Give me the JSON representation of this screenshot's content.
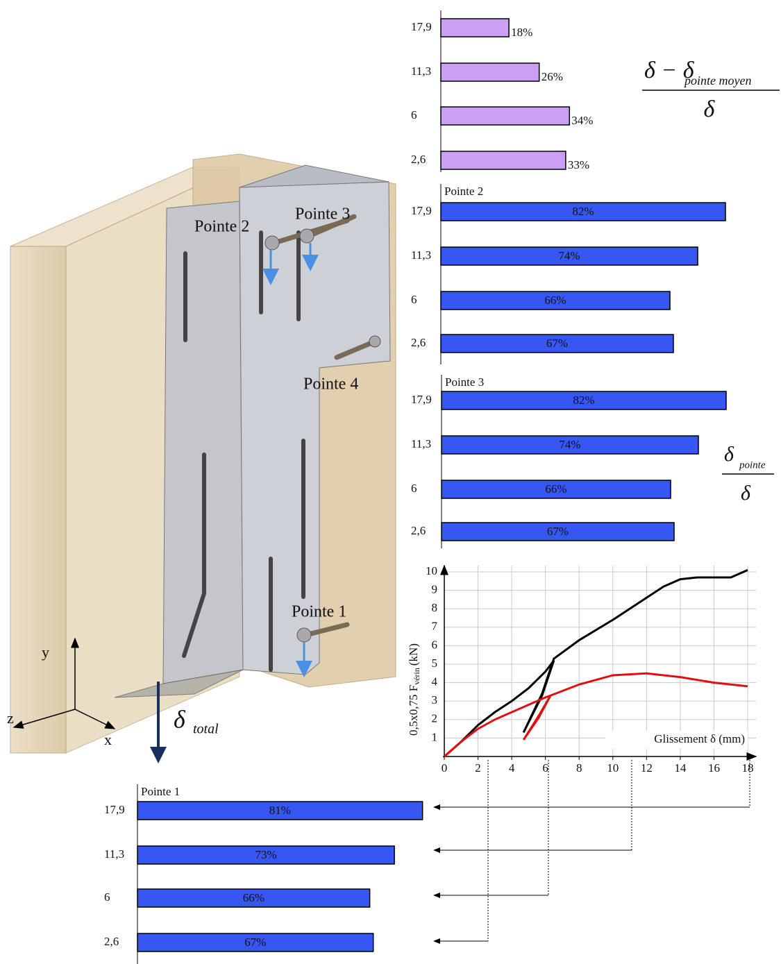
{
  "illustration": {
    "labels": [
      "Pointe 2",
      "Pointe 3",
      "Pointe 4",
      "Pointe 1"
    ],
    "axes": [
      "y",
      "z",
      "x"
    ],
    "delta": "δ",
    "delta_sub": "total"
  },
  "chart_data": [
    {
      "type": "bar",
      "orientation": "horizontal",
      "categories": [
        "17,9",
        "11,3",
        "6",
        "2,6"
      ],
      "values": [
        18,
        26,
        34,
        33
      ],
      "value_labels": [
        "18%",
        "26%",
        "34%",
        "33%"
      ],
      "color": "#cc9ff5",
      "annotation": {
        "numerator": "δ − δ",
        "subscript": "pointe moyen",
        "denominator": "δ"
      }
    },
    {
      "type": "bar",
      "orientation": "horizontal",
      "title": "Pointe 2",
      "categories": [
        "17,9",
        "11,3",
        "6",
        "2,6"
      ],
      "values": [
        82,
        74,
        66,
        67
      ],
      "value_labels": [
        "82%",
        "74%",
        "66%",
        "67%"
      ],
      "color": "#3657f2"
    },
    {
      "type": "bar",
      "orientation": "horizontal",
      "title": "Pointe 3",
      "categories": [
        "17,9",
        "11,3",
        "6",
        "2,6"
      ],
      "values": [
        82,
        74,
        66,
        67
      ],
      "value_labels": [
        "82%",
        "74%",
        "66%",
        "67%"
      ],
      "color": "#3657f2",
      "annotation": {
        "numerator": "δ",
        "subscript": "pointe",
        "denominator": "δ"
      }
    },
    {
      "type": "line",
      "xlabel": "Glissement δ (mm)",
      "ylabel": "0,5x0,75 F",
      "ylabel_sub": "vérin",
      "ylabel_unit": "(kN)",
      "xlim": [
        0,
        18
      ],
      "ylim": [
        0,
        10
      ],
      "xticks": [
        0,
        2,
        4,
        6,
        8,
        10,
        12,
        14,
        16,
        18
      ],
      "yticks": [
        1,
        2,
        3,
        4,
        5,
        6,
        7,
        8,
        9,
        10
      ],
      "grid": true,
      "series": [
        {
          "color": "#000000",
          "x": [
            0,
            1,
            2,
            3,
            4,
            5,
            6,
            6.5,
            5.8,
            4.7,
            5.8,
            6.5,
            8,
            10,
            12,
            13,
            14,
            15,
            16,
            17,
            18
          ],
          "values": [
            0,
            0.8,
            1.7,
            2.4,
            3,
            3.7,
            4.6,
            5.2,
            3.3,
            1.3,
            3.4,
            5.3,
            6.3,
            7.4,
            8.6,
            9.2,
            9.6,
            9.7,
            9.7,
            9.7,
            10.1
          ]
        },
        {
          "color": "#e01010",
          "x": [
            0,
            1,
            2,
            3,
            4,
            5,
            6,
            6.3,
            5.6,
            4.7,
            5.6,
            6.3,
            8,
            10,
            12,
            14,
            16,
            18
          ],
          "values": [
            0,
            0.8,
            1.5,
            2,
            2.4,
            2.8,
            3.2,
            3.3,
            2.1,
            0.9,
            2.2,
            3.3,
            3.9,
            4.4,
            4.5,
            4.3,
            4.0,
            3.8
          ]
        }
      ]
    },
    {
      "type": "bar",
      "orientation": "horizontal",
      "title": "Pointe 1",
      "categories": [
        "17,9",
        "11,3",
        "6",
        "2,6"
      ],
      "values": [
        81,
        73,
        66,
        67
      ],
      "value_labels": [
        "81%",
        "73%",
        "66%",
        "67%"
      ],
      "color": "#3657f2"
    }
  ]
}
